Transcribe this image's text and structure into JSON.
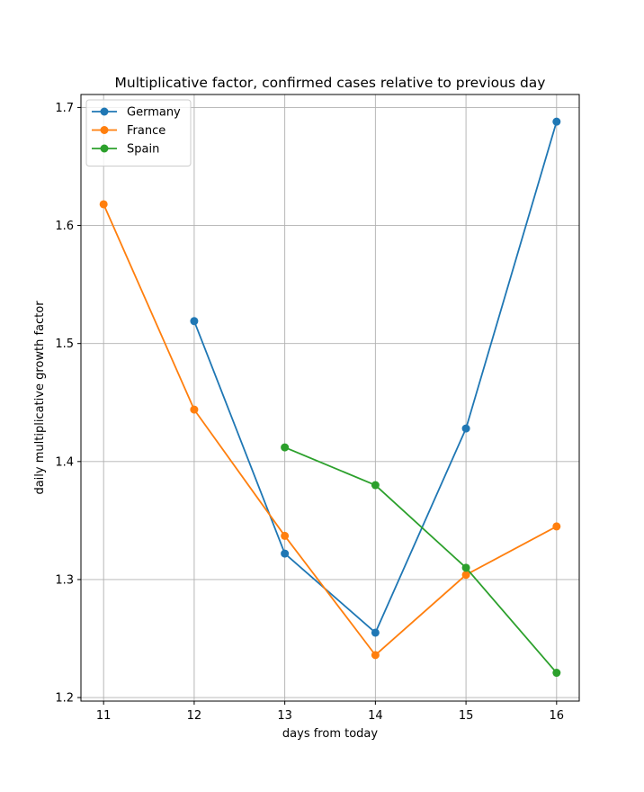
{
  "chart_data": {
    "type": "line",
    "title": "Multiplicative factor, confirmed cases relative to previous day",
    "xlabel": "days from today",
    "ylabel": "daily multiplicative growth factor",
    "xlim": [
      10.75,
      16.25
    ],
    "ylim": [
      1.197,
      1.711
    ],
    "xticks": [
      11,
      12,
      13,
      14,
      15,
      16
    ],
    "xtick_labels": [
      "11",
      "12",
      "13",
      "14",
      "15",
      "16"
    ],
    "yticks": [
      1.2,
      1.3,
      1.4,
      1.5,
      1.6,
      1.7
    ],
    "ytick_labels": [
      "1.2",
      "1.3",
      "1.4",
      "1.5",
      "1.6",
      "1.7"
    ],
    "grid": true,
    "legend_position": "top-left",
    "series": [
      {
        "name": "Germany",
        "color": "#1f77b4",
        "x": [
          12,
          13,
          14,
          15,
          16
        ],
        "y": [
          1.519,
          1.322,
          1.255,
          1.428,
          1.688
        ]
      },
      {
        "name": "France",
        "color": "#ff7f0e",
        "x": [
          11,
          12,
          13,
          14,
          15,
          16
        ],
        "y": [
          1.618,
          1.444,
          1.337,
          1.236,
          1.304,
          1.345
        ]
      },
      {
        "name": "Spain",
        "color": "#2ca02c",
        "x": [
          13,
          14,
          15,
          16
        ],
        "y": [
          1.412,
          1.38,
          1.31,
          1.221
        ]
      }
    ]
  }
}
